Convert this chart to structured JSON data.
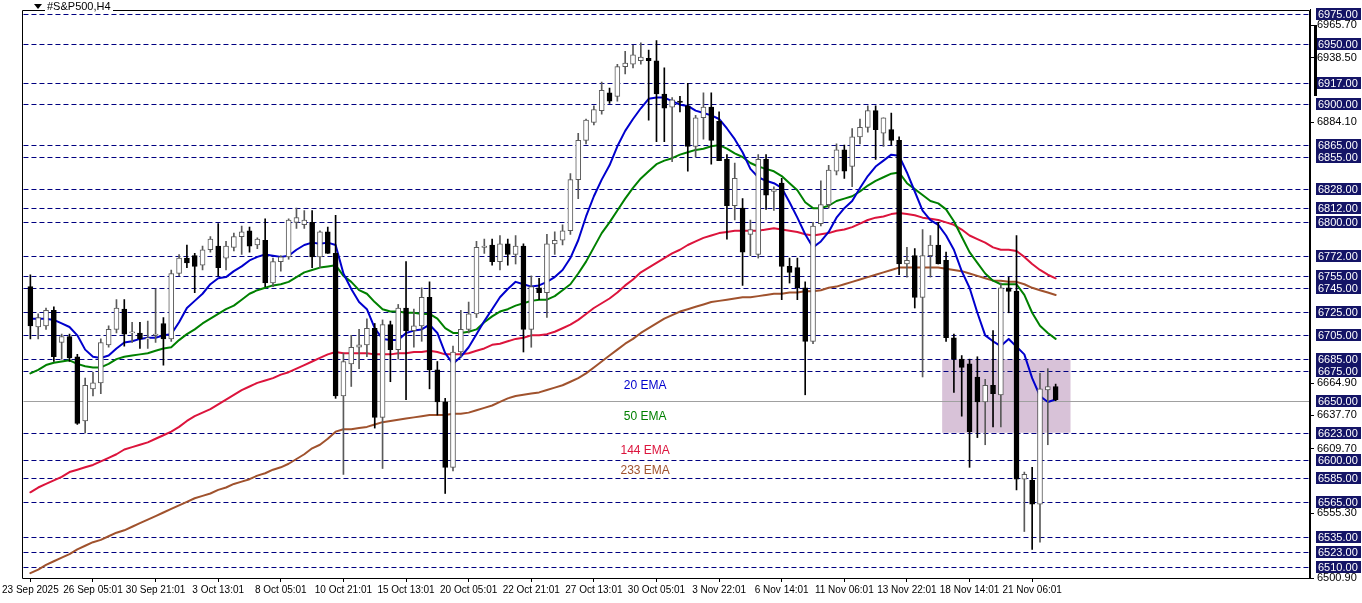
{
  "chart_data": {
    "type": "candlestick",
    "title": "#S&P500,H4",
    "categories": [
      "23 Sep 2025",
      null,
      null,
      null,
      null,
      null,
      null,
      null,
      "26 Sep 05:01",
      null,
      null,
      null,
      null,
      null,
      null,
      null,
      "30 Sep 21:01",
      null,
      null,
      null,
      null,
      null,
      null,
      null,
      "3 Oct 13:01",
      null,
      null,
      null,
      null,
      null,
      null,
      null,
      "8 Oct 05:01",
      null,
      null,
      null,
      null,
      null,
      null,
      null,
      "10 Oct 21:01",
      null,
      null,
      null,
      null,
      null,
      null,
      null,
      "15 Oct 13:01",
      null,
      null,
      null,
      null,
      null,
      null,
      null,
      "20 Oct 05:01",
      null,
      null,
      null,
      null,
      null,
      null,
      null,
      "22 Oct 21:01",
      null,
      null,
      null,
      null,
      null,
      null,
      null,
      "27 Oct 13:01",
      null,
      null,
      null,
      null,
      null,
      null,
      null,
      "30 Oct 05:01",
      null,
      null,
      null,
      null,
      null,
      null,
      null,
      "3 Nov 22:01",
      null,
      null,
      null,
      null,
      null,
      null,
      null,
      "6 Nov 14:01",
      null,
      null,
      null,
      null,
      null,
      null,
      null,
      "11 Nov 06:01",
      null,
      null,
      null,
      null,
      null,
      null,
      null,
      "13 Nov 22:01",
      null,
      null,
      null,
      null,
      null,
      null,
      null,
      "18 Nov 14:01",
      null,
      null,
      null,
      null,
      null,
      null,
      null,
      "21 Nov 06:01",
      null,
      null,
      null,
      null,
      null,
      null,
      null,
      null,
      null,
      null,
      null,
      null,
      null,
      null,
      null,
      null,
      null,
      null,
      null,
      null,
      null,
      null,
      null,
      null,
      null,
      null,
      null,
      null,
      null,
      null,
      null,
      null,
      null,
      null,
      null
    ],
    "ohlc": [
      [
        6746,
        6756,
        6702,
        6713
      ],
      [
        6712,
        6723,
        6702,
        6720
      ],
      [
        6713,
        6728,
        6710,
        6726
      ],
      [
        6726,
        6729,
        6683,
        6687
      ],
      [
        6699,
        6706,
        6685,
        6704
      ],
      [
        6704,
        6706,
        6683,
        6686
      ],
      [
        6687,
        6689,
        6630,
        6631
      ],
      [
        6633,
        6669,
        6623,
        6663
      ],
      [
        6660,
        6674,
        6654,
        6665
      ],
      [
        6665,
        6702,
        6656,
        6699
      ],
      [
        6697,
        6713,
        6695,
        6710
      ],
      [
        6710,
        6735,
        6707,
        6728
      ],
      [
        6727,
        6735,
        6696,
        6706
      ],
      [
        6707,
        6716,
        6699,
        6708
      ],
      [
        6707,
        6716,
        6694,
        6702
      ],
      [
        6702,
        6717,
        6694,
        6703
      ],
      [
        6705,
        6744,
        6699,
        6706
      ],
      [
        6715,
        6720,
        6680,
        6702
      ],
      [
        6702,
        6760,
        6700,
        6757
      ],
      [
        6757,
        6773,
        6755,
        6770
      ],
      [
        6770,
        6781,
        6762,
        6766
      ],
      [
        6772,
        6774,
        6741,
        6763
      ],
      [
        6764,
        6780,
        6760,
        6777
      ],
      [
        6777,
        6788,
        6775,
        6786
      ],
      [
        6780,
        6799,
        6755,
        6762
      ],
      [
        6770,
        6784,
        6760,
        6780
      ],
      [
        6779,
        6791,
        6776,
        6788
      ],
      [
        6788,
        6797,
        6773,
        6792
      ],
      [
        6793,
        6796,
        6775,
        6780
      ],
      [
        6781,
        6787,
        6778,
        6786
      ],
      [
        6785,
        6803,
        6746,
        6749
      ],
      [
        6749,
        6770,
        6746,
        6767
      ],
      [
        6767,
        6772,
        6759,
        6771
      ],
      [
        6771,
        6803,
        6769,
        6802
      ],
      [
        6800,
        6812,
        6795,
        6804
      ],
      [
        6798,
        6810,
        6795,
        6802
      ],
      [
        6800,
        6810,
        6762,
        6771
      ],
      [
        6771,
        6793,
        6762,
        6792
      ],
      [
        6792,
        6796,
        6774,
        6774
      ],
      [
        6774,
        6806,
        6652,
        6654
      ],
      [
        6654,
        6690,
        6588,
        6683
      ],
      [
        6681,
        6705,
        6662,
        6695
      ],
      [
        6695,
        6710,
        6677,
        6697
      ],
      [
        6697,
        6719,
        6687,
        6711
      ],
      [
        6711,
        6715,
        6627,
        6636
      ],
      [
        6636,
        6718,
        6593,
        6714
      ],
      [
        6714,
        6717,
        6666,
        6693
      ],
      [
        6693,
        6731,
        6685,
        6728
      ],
      [
        6728,
        6767,
        6651,
        6709
      ],
      [
        6709,
        6727,
        6695,
        6713
      ],
      [
        6713,
        6745,
        6700,
        6737
      ],
      [
        6737,
        6750,
        6660,
        6676
      ],
      [
        6676,
        6683,
        6638,
        6649
      ],
      [
        6649,
        6652,
        6572,
        6594
      ],
      [
        6594,
        6696,
        6591,
        6691
      ],
      [
        6691,
        6726,
        6687,
        6710
      ],
      [
        6710,
        6733,
        6707,
        6723
      ],
      [
        6723,
        6784,
        6720,
        6779
      ],
      [
        6779,
        6786,
        6774,
        6780
      ],
      [
        6781,
        6786,
        6764,
        6767
      ],
      [
        6767,
        6789,
        6760,
        6782
      ],
      [
        6782,
        6786,
        6764,
        6773
      ],
      [
        6773,
        6789,
        6765,
        6780
      ],
      [
        6780,
        6782,
        6691,
        6710
      ],
      [
        6710,
        6755,
        6695,
        6746
      ],
      [
        6745,
        6753,
        6735,
        6741
      ],
      [
        6741,
        6790,
        6720,
        6782
      ],
      [
        6782,
        6792,
        6773,
        6785
      ],
      [
        6785,
        6798,
        6781,
        6793
      ],
      [
        6793,
        6841,
        6790,
        6836
      ],
      [
        6836,
        6875,
        6820,
        6869
      ],
      [
        6869,
        6887,
        6866,
        6886
      ],
      [
        6884,
        6898,
        6882,
        6895
      ],
      [
        6894,
        6918,
        6891,
        6911
      ],
      [
        6909,
        6913,
        6900,
        6902
      ],
      [
        6906,
        6933,
        6902,
        6931
      ],
      [
        6931,
        6944,
        6925,
        6934
      ],
      [
        6933,
        6949,
        6930,
        6941
      ],
      [
        6936,
        6951,
        6933,
        6939
      ],
      [
        6938,
        6945,
        6886,
        6936
      ],
      [
        6936,
        6953,
        6868,
        6908
      ],
      [
        6908,
        6930,
        6868,
        6896
      ],
      [
        6897,
        6905,
        6851,
        6903
      ],
      [
        6902,
        6906,
        6893,
        6901
      ],
      [
        6898,
        6917,
        6843,
        6864
      ],
      [
        6864,
        6890,
        6855,
        6888
      ],
      [
        6888,
        6909,
        6870,
        6897
      ],
      [
        6897,
        6909,
        6849,
        6869
      ],
      [
        6885,
        6893,
        6852,
        6852
      ],
      [
        6853,
        6857,
        6786,
        6814
      ],
      [
        6814,
        6850,
        6802,
        6837
      ],
      [
        6812,
        6820,
        6747,
        6775
      ],
      [
        6790,
        6802,
        6772,
        6794
      ],
      [
        6773,
        6857,
        6770,
        6853
      ],
      [
        6853,
        6857,
        6811,
        6823
      ],
      [
        6826,
        6830,
        6810,
        6828
      ],
      [
        6833,
        6837,
        6735,
        6763
      ],
      [
        6763,
        6770,
        6749,
        6758
      ],
      [
        6762,
        6770,
        6735,
        6745
      ],
      [
        6745,
        6750,
        6655,
        6700
      ],
      [
        6700,
        6800,
        6698,
        6797
      ],
      [
        6799,
        6835,
        6797,
        6815
      ],
      [
        6815,
        6848,
        6812,
        6844
      ],
      [
        6843,
        6866,
        6840,
        6861
      ],
      [
        6861,
        6865,
        6837,
        6843
      ],
      [
        6847,
        6879,
        6830,
        6872
      ],
      [
        6872,
        6887,
        6866,
        6880
      ],
      [
        6880,
        6898,
        6876,
        6894
      ],
      [
        6894,
        6898,
        6853,
        6878
      ],
      [
        6875,
        6888,
        6864,
        6888
      ],
      [
        6878,
        6892,
        6865,
        6869
      ],
      [
        6869,
        6872,
        6756,
        6765
      ],
      [
        6765,
        6779,
        6754,
        6768
      ],
      [
        6772,
        6778,
        6728,
        6737
      ],
      [
        6737,
        6794,
        6670,
        6772
      ],
      [
        6772,
        6789,
        6754,
        6781
      ],
      [
        6781,
        6800,
        6765,
        6765
      ],
      [
        6768,
        6775,
        6700,
        6703
      ],
      [
        6703,
        6706,
        6657,
        6685
      ],
      [
        6685,
        6688,
        6637,
        6678
      ],
      [
        6681,
        6685,
        6594,
        6624
      ],
      [
        6670,
        6687,
        6619,
        6649
      ],
      [
        6649,
        6668,
        6613,
        6663
      ],
      [
        6663,
        6709,
        6628,
        6656
      ],
      [
        6655,
        6749,
        6628,
        6745
      ],
      [
        6745,
        6754,
        6724,
        6742
      ],
      [
        6742,
        6789,
        6575,
        6584
      ],
      [
        6584,
        6590,
        6540,
        6588
      ],
      [
        6583,
        6594,
        6525,
        6563
      ],
      [
        6563,
        6673,
        6531,
        6660
      ],
      [
        6659,
        6677,
        6613,
        6662
      ],
      [
        6662,
        6664,
        6650,
        6651
      ],
      null,
      null,
      null,
      null,
      null,
      null,
      null,
      null,
      null,
      null,
      null,
      null,
      null,
      null,
      null,
      null,
      null,
      null,
      null,
      null,
      null,
      null,
      null,
      null,
      null,
      null,
      null,
      null,
      null,
      null,
      null,
      null
    ],
    "series": [
      {
        "name": "20 EMA",
        "type": "line",
        "color": "#0000cd",
        "values": [
          6719,
          6719,
          6719,
          6718,
          6715,
          6712,
          6705,
          6693,
          6687,
          6686,
          6688,
          6694,
          6699,
          6700,
          6702,
          6703,
          6703,
          6705,
          6706,
          6716,
          6728,
          6734,
          6740,
          6748,
          6753,
          6754,
          6759,
          6763,
          6768,
          6771,
          6773,
          6772,
          6771,
          6772,
          6777,
          6781,
          6783,
          6782,
          6783,
          6781,
          6757,
          6744,
          6733,
          6727,
          6711,
          6702,
          6701,
          6701,
          6707,
          6709,
          6710,
          6714,
          6707,
          6690,
          6681,
          6687,
          6695,
          6706,
          6717,
          6727,
          6737,
          6744,
          6750,
          6748,
          6746,
          6747,
          6750,
          6754,
          6760,
          6770,
          6785,
          6805,
          6822,
          6836,
          6848,
          6864,
          6877,
          6887,
          6896,
          6904,
          6905,
          6905,
          6902,
          6899,
          6898,
          6894,
          6892,
          6890,
          6887,
          6879,
          6870,
          6859,
          6845,
          6838,
          6835,
          6833,
          6829,
          6817,
          6804,
          6790,
          6779,
          6784,
          6792,
          6804,
          6812,
          6818,
          6829,
          6839,
          6847,
          6852,
          6857,
          6856,
          6842,
          6826,
          6810,
          6802,
          6798,
          6789,
          6777,
          6759,
          6745,
          6724,
          6705,
          6700,
          6696,
          6702,
          null,
          6689,
          6669,
          6654,
          6649,
          6651,
          null,
          null,
          null,
          null,
          null,
          null,
          null,
          null,
          null,
          null,
          null,
          null,
          null,
          null,
          null,
          null,
          null,
          null,
          null,
          null,
          null,
          null,
          null,
          null,
          null,
          null,
          null,
          null,
          null,
          null,
          null,
          null
        ]
      },
      {
        "name": "50 EMA",
        "type": "line",
        "color": "#008000",
        "values": [
          6673,
          6676,
          6680,
          6682,
          6683,
          6684,
          6681,
          6679,
          6678,
          6678,
          6681,
          6685,
          6687,
          6688,
          6689,
          6690,
          6692,
          6694,
          6695,
          6701,
          6706,
          6710,
          6715,
          6719,
          6723,
          6727,
          6730,
          6735,
          6740,
          6743,
          6745,
          6747,
          6748,
          6750,
          6754,
          6758,
          6760,
          6762,
          6763,
          6764,
          6755,
          6750,
          6743,
          6740,
          6733,
          6727,
          6725,
          6725,
          6724,
          6724,
          6723,
          6723,
          6719,
          6711,
          6707,
          6707,
          6708,
          6710,
          6716,
          6721,
          6725,
          6727,
          6730,
          6732,
          6734,
          6735,
          6735,
          6738,
          6743,
          6748,
          6757,
          6767,
          6779,
          6791,
          6800,
          6810,
          6820,
          6829,
          6837,
          6843,
          6849,
          6852,
          6854,
          6857,
          6859,
          6861,
          6862,
          6864,
          6865,
          6862,
          6858,
          6855,
          6850,
          6847,
          6845,
          6843,
          6839,
          6833,
          6827,
          6817,
          6812,
          6812,
          6814,
          6818,
          6820,
          6822,
          6826,
          6831,
          6835,
          6838,
          6841,
          6842,
          6833,
          6828,
          6823,
          6818,
          6816,
          6811,
          6801,
          6788,
          6775,
          6766,
          6757,
          6751,
          6748,
          6748,
          6748,
          6739,
          6724,
          6713,
          6707,
          6702,
          null,
          null,
          null,
          null,
          null,
          null,
          null,
          null,
          null,
          null,
          null,
          null,
          null,
          null,
          null,
          null,
          null,
          null,
          null,
          null,
          null,
          null,
          null,
          null,
          null,
          null,
          null,
          null,
          null,
          null,
          null,
          null
        ]
      },
      {
        "name": "144 EMA",
        "type": "line",
        "color": "#dc143c",
        "values": [
          6573,
          6577,
          6580,
          6583,
          6586,
          6590,
          6592,
          6594,
          6596,
          6599,
          6602,
          6605,
          6609,
          6611,
          6613,
          6615,
          6618,
          6621,
          6624,
          6628,
          6633,
          6637,
          6640,
          6643,
          6647,
          6651,
          6655,
          6659,
          6662,
          6665,
          6667,
          6669,
          6672,
          6674,
          6677,
          6680,
          6683,
          6686,
          6689,
          6691,
          6690,
          6690,
          6690,
          6690,
          6689,
          6689,
          6689,
          6690,
          6690,
          6691,
          6691,
          6692,
          6691,
          6689,
          6689,
          6689,
          6690,
          6692,
          6694,
          6697,
          6698,
          6700,
          6702,
          6703,
          6705,
          6705,
          6706,
          6708,
          6711,
          6714,
          6718,
          6723,
          6728,
          6732,
          6736,
          6741,
          6747,
          6752,
          6758,
          6762,
          6766,
          6770,
          6774,
          6777,
          6781,
          6784,
          6787,
          6789,
          6791,
          6792,
          6793,
          6793,
          6793,
          6793,
          6794,
          6795,
          6794,
          6793,
          6792,
          6790,
          6789,
          6790,
          6791,
          6793,
          6794,
          6796,
          6799,
          6802,
          6804,
          6805,
          6807,
          6808,
          6807,
          6806,
          6804,
          6803,
          6802,
          6800,
          6798,
          6794,
          6789,
          6786,
          6783,
          6779,
          6777,
          6777,
          6776,
          6771,
          6765,
          6760,
          6756,
          6753,
          null,
          null,
          null,
          null,
          null,
          null,
          null,
          null,
          null,
          null,
          null,
          null,
          null,
          null,
          null,
          null,
          null,
          null,
          null,
          null,
          null,
          null,
          null,
          null,
          null,
          null,
          null,
          null,
          null,
          null,
          null,
          null
        ]
      },
      {
        "name": "233 EMA",
        "type": "line",
        "color": "#a0522d",
        "values": [
          6505,
          6508,
          6512,
          6515,
          6518,
          6521,
          6525,
          6528,
          6531,
          6533,
          6536,
          6539,
          6541,
          6544,
          6547,
          6550,
          6553,
          6556,
          6559,
          6562,
          6565,
          6568,
          6570,
          6572,
          6575,
          6577,
          6580,
          6582,
          6584,
          6587,
          6589,
          6592,
          6594,
          6597,
          6601,
          6605,
          6610,
          6613,
          6618,
          6624,
          6626,
          6626,
          6627,
          6628,
          6630,
          6632,
          6633,
          6634,
          6635,
          6636,
          6637,
          6638,
          6638,
          6638,
          6639,
          6639,
          6640,
          6642,
          6644,
          6646,
          6649,
          6652,
          6654,
          6655,
          6656,
          6657,
          6659,
          6661,
          6663,
          6666,
          6669,
          6673,
          6678,
          6683,
          6688,
          6693,
          6698,
          6702,
          6707,
          6711,
          6715,
          6719,
          6722,
          6725,
          6727,
          6729,
          6731,
          6733,
          6734,
          6735,
          6736,
          6737,
          6737,
          6738,
          6739,
          6740,
          6740,
          6741,
          6741,
          6742,
          6742,
          6743,
          6745,
          6746,
          6748,
          6750,
          6752,
          6754,
          6756,
          6758,
          6760,
          6762,
          6762,
          6762,
          6762,
          6762,
          6762,
          6761,
          6760,
          6759,
          6757,
          6755,
          6753,
          6751,
          6751,
          6750,
          6750,
          6748,
          6745,
          6743,
          6741,
          6739,
          null,
          null,
          null,
          null,
          null,
          null,
          null,
          null,
          null,
          null,
          null,
          null,
          null,
          null,
          null,
          null,
          null,
          null,
          null,
          null,
          null,
          null,
          null,
          null,
          null,
          null,
          null,
          null,
          null,
          null,
          null,
          null
        ]
      }
    ],
    "ylim": [
      6500.9,
      6979
    ],
    "yticks": [
      {
        "value": 6965.7,
        "label": "6965.70"
      },
      {
        "value": 6938.5,
        "label": "6938.50"
      },
      {
        "value": 6884.1,
        "label": "6884.10"
      },
      {
        "value": 6664.9,
        "label": "6664.90"
      },
      {
        "value": 6637.7,
        "label": "6637.70"
      },
      {
        "value": 6609.7,
        "label": "6609.70"
      },
      {
        "value": 6555.3,
        "label": "6555.30"
      },
      {
        "value": 6500.9,
        "label": "6500.90"
      }
    ],
    "ref_lines": [
      {
        "axis": "y",
        "value": 6975,
        "label": "6975.00",
        "color": "#000080",
        "line_style": "dashed"
      },
      {
        "axis": "y",
        "value": 6950,
        "label": "6950.00",
        "color": "#000080",
        "line_style": "dashed"
      },
      {
        "axis": "y",
        "value": 6917,
        "label": "6917.00",
        "color": "#000080",
        "line_style": "dashed"
      },
      {
        "axis": "y",
        "value": 6900,
        "label": "6900.00",
        "color": "#000080",
        "line_style": "dashed"
      },
      {
        "axis": "y",
        "value": 6865,
        "label": "6865.00",
        "color": "#000080",
        "line_style": "dashed"
      },
      {
        "axis": "y",
        "value": 6855,
        "label": "6855.00",
        "color": "#000080",
        "line_style": "dashed"
      },
      {
        "axis": "y",
        "value": 6828,
        "label": "6828.00",
        "color": "#000080",
        "line_style": "dashed"
      },
      {
        "axis": "y",
        "value": 6812,
        "label": "6812.00",
        "color": "#000080",
        "line_style": "dashed"
      },
      {
        "axis": "y",
        "value": 6800,
        "label": "6800.00",
        "color": "#000080",
        "line_style": "dashed"
      },
      {
        "axis": "y",
        "value": 6772,
        "label": "6772.00",
        "color": "#000080",
        "line_style": "dashed"
      },
      {
        "axis": "y",
        "value": 6755,
        "label": "6755.00",
        "color": "#000080",
        "line_style": "dashed"
      },
      {
        "axis": "y",
        "value": 6745,
        "label": "6745.00",
        "color": "#000080",
        "line_style": "dashed"
      },
      {
        "axis": "y",
        "value": 6725,
        "label": "6725.00",
        "color": "#000080",
        "line_style": "dashed"
      },
      {
        "axis": "y",
        "value": 6705,
        "label": "6705.00",
        "color": "#000080",
        "line_style": "dashed"
      },
      {
        "axis": "y",
        "value": 6685,
        "label": "6685.00",
        "color": "#000080",
        "line_style": "dashed"
      },
      {
        "axis": "y",
        "value": 6675,
        "label": "6675.00",
        "color": "#000080",
        "line_style": "dashed"
      },
      {
        "axis": "y",
        "value": 6650,
        "label": "6650.00",
        "color": "#a0a0a0",
        "line_style": "solid"
      },
      {
        "axis": "y",
        "value": 6623,
        "label": "6623.00",
        "color": "#000080",
        "line_style": "dashed"
      },
      {
        "axis": "y",
        "value": 6600,
        "label": "6600.00",
        "color": "#000080",
        "line_style": "dashed"
      },
      {
        "axis": "y",
        "value": 6585,
        "label": "6585.00",
        "color": "#000080",
        "line_style": "dashed"
      },
      {
        "axis": "y",
        "value": 6565,
        "label": "6565.00",
        "color": "#000080",
        "line_style": "dashed"
      },
      {
        "axis": "y",
        "value": 6535,
        "label": "6535.00",
        "color": "#000080",
        "line_style": "dashed"
      },
      {
        "axis": "y",
        "value": 6523,
        "label": "6523.00",
        "color": "#000080",
        "line_style": "dashed"
      },
      {
        "axis": "y",
        "value": 6510,
        "label": "6510.00",
        "color": "#000080",
        "line_style": "dashed"
      }
    ],
    "bands": [
      {
        "axis": "y",
        "from": 6623,
        "to": 6685,
        "color": "#d8c2d8"
      }
    ]
  }
}
